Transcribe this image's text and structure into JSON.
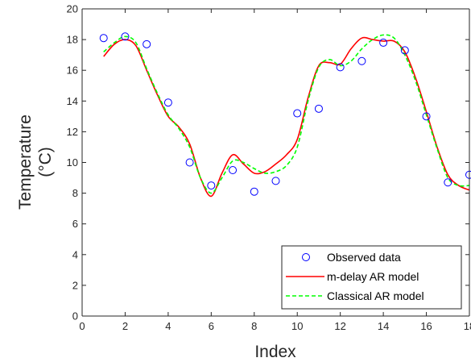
{
  "chart_data": {
    "type": "line",
    "xlabel": "Index",
    "ylabel": "Temperature",
    "ylabel_unit": "(°C)",
    "xlim": [
      0,
      18
    ],
    "ylim": [
      0,
      20
    ],
    "x_ticks": [
      0,
      2,
      4,
      6,
      8,
      10,
      12,
      14,
      16,
      18
    ],
    "y_ticks": [
      0,
      2,
      4,
      6,
      8,
      10,
      12,
      14,
      16,
      18,
      20
    ],
    "grid": false,
    "legend_position": "bottom-right",
    "series": [
      {
        "name": "Observed data",
        "style": "markers",
        "marker": "circle",
        "color": "#0000ff",
        "x": [
          1,
          2,
          3,
          4,
          5,
          6,
          7,
          8,
          9,
          10,
          11,
          12,
          13,
          14,
          15,
          16,
          17,
          18
        ],
        "y": [
          18.1,
          18.2,
          17.7,
          13.9,
          10.0,
          8.5,
          9.5,
          8.1,
          8.8,
          13.2,
          13.5,
          16.2,
          16.6,
          17.8,
          17.3,
          13.0,
          8.7,
          9.2
        ]
      },
      {
        "name": "m-delay AR model",
        "style": "solid",
        "color": "#ff0000",
        "x": [
          1,
          1.5,
          2,
          2.5,
          3,
          3.5,
          4,
          4.5,
          5,
          5.5,
          6,
          6.5,
          7,
          7.5,
          8,
          8.5,
          9,
          9.5,
          10,
          10.5,
          11,
          11.5,
          12,
          12.5,
          13,
          13.5,
          14,
          14.5,
          15,
          15.5,
          16,
          16.5,
          17,
          17.5,
          18
        ],
        "y": [
          16.9,
          17.7,
          18.0,
          17.6,
          16.0,
          14.4,
          13.0,
          12.3,
          11.2,
          9.0,
          7.8,
          9.3,
          10.5,
          9.9,
          9.3,
          9.4,
          9.9,
          10.5,
          11.5,
          14.2,
          16.3,
          16.5,
          16.4,
          17.4,
          18.1,
          18.0,
          17.9,
          17.9,
          17.2,
          15.5,
          13.3,
          11.0,
          9.2,
          8.5,
          8.2
        ]
      },
      {
        "name": "Classical AR model",
        "style": "dashed",
        "color": "#00ff00",
        "x": [
          1,
          1.5,
          2,
          2.5,
          3,
          3.5,
          4,
          4.5,
          5,
          5.5,
          6,
          6.5,
          7,
          7.5,
          8,
          8.5,
          9,
          9.5,
          10,
          10.5,
          11,
          11.5,
          12,
          12.5,
          13,
          13.5,
          14,
          14.5,
          15,
          15.5,
          16,
          16.5,
          17,
          17.5,
          18
        ],
        "y": [
          17.2,
          17.8,
          18.2,
          17.8,
          16.1,
          14.5,
          13.1,
          12.2,
          11.0,
          9.0,
          8.0,
          9.0,
          10.1,
          10.0,
          9.6,
          9.3,
          9.4,
          9.8,
          11.0,
          14.0,
          16.2,
          16.7,
          16.3,
          16.6,
          17.4,
          18.0,
          18.3,
          18.1,
          17.0,
          15.3,
          13.1,
          10.9,
          9.0,
          8.5,
          8.5
        ]
      }
    ]
  }
}
